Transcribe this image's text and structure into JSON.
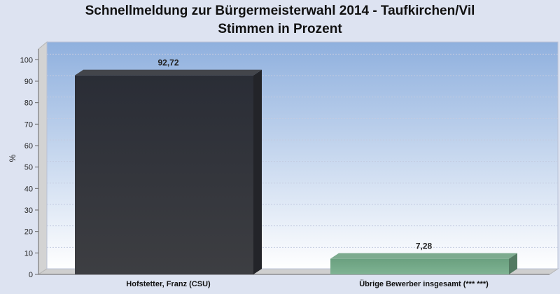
{
  "chart_data": {
    "type": "bar",
    "title": "Schnellmeldung zur Bürgermeisterwahl 2014 - Taufkirchen/Vil",
    "subtitle": "Stimmen in Prozent",
    "ylabel": "%",
    "xlabel": "",
    "categories": [
      "Hofstetter, Franz (CSU)",
      "Übrige Bewerber insgesamt (***  ***)"
    ],
    "values": [
      92.72,
      7.28
    ],
    "value_labels": [
      "92,72",
      "7,28"
    ],
    "colors": [
      "#2e3037",
      "#6fa283"
    ],
    "ylim": [
      0,
      105
    ],
    "yticks": [
      0,
      10,
      20,
      30,
      40,
      50,
      60,
      70,
      80,
      90,
      100
    ],
    "grid": true,
    "legend": "none",
    "style": "3d"
  }
}
